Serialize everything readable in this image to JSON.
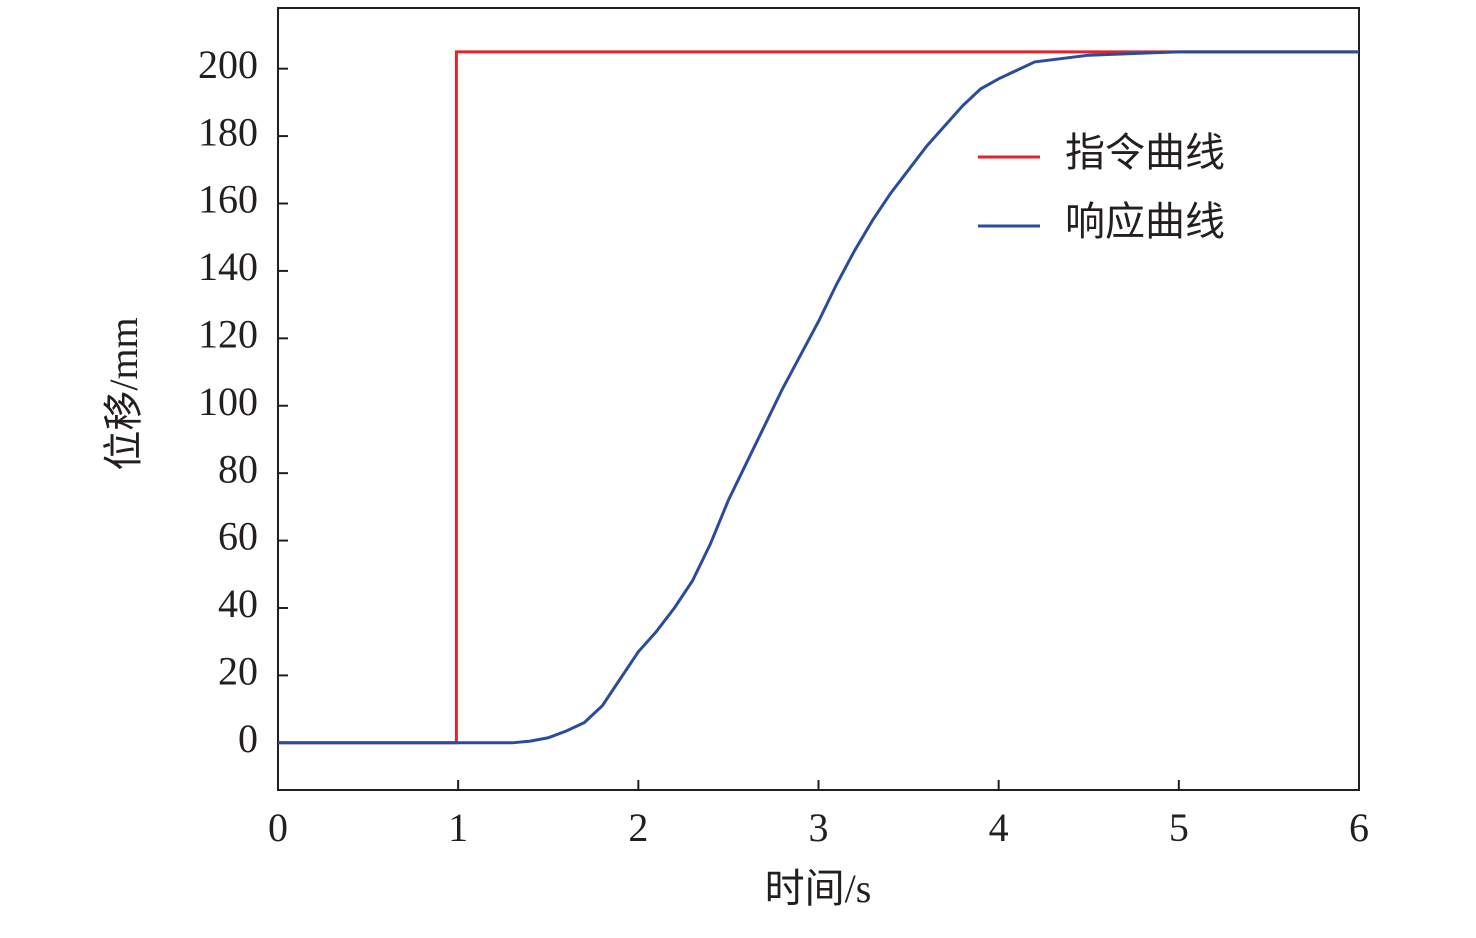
{
  "chart_data": {
    "type": "line",
    "x_label": "时间/s",
    "y_label": "位移/mm",
    "xlim": [
      0,
      6
    ],
    "xticks": [
      0,
      1,
      2,
      3,
      4,
      5,
      6
    ],
    "ylim": [
      -14,
      218
    ],
    "yticks": [
      0,
      20,
      40,
      60,
      80,
      100,
      120,
      140,
      160,
      180,
      200
    ],
    "legend": "upper-right",
    "series": [
      {
        "name": "指令曲线",
        "color": "#e0242b",
        "x": [
          0,
          0.99,
          0.99,
          6
        ],
        "values": [
          0,
          0,
          205,
          205
        ]
      },
      {
        "name": "响应曲线",
        "color": "#2b4c9b",
        "x": [
          0,
          1.3,
          1.4,
          1.5,
          1.6,
          1.7,
          1.8,
          1.9,
          2.0,
          2.1,
          2.2,
          2.3,
          2.4,
          2.5,
          2.6,
          2.7,
          2.8,
          2.9,
          3.0,
          3.1,
          3.2,
          3.3,
          3.4,
          3.5,
          3.6,
          3.7,
          3.8,
          3.9,
          4.0,
          4.2,
          4.5,
          5,
          6
        ],
        "values": [
          0,
          0,
          0.5,
          1.5,
          3.5,
          6,
          11,
          19,
          27,
          33,
          40,
          48,
          59,
          72,
          83,
          94,
          105,
          115,
          125,
          136,
          146,
          155,
          163,
          170,
          177,
          183,
          189,
          194,
          197,
          202,
          204,
          205,
          205
        ]
      }
    ]
  }
}
